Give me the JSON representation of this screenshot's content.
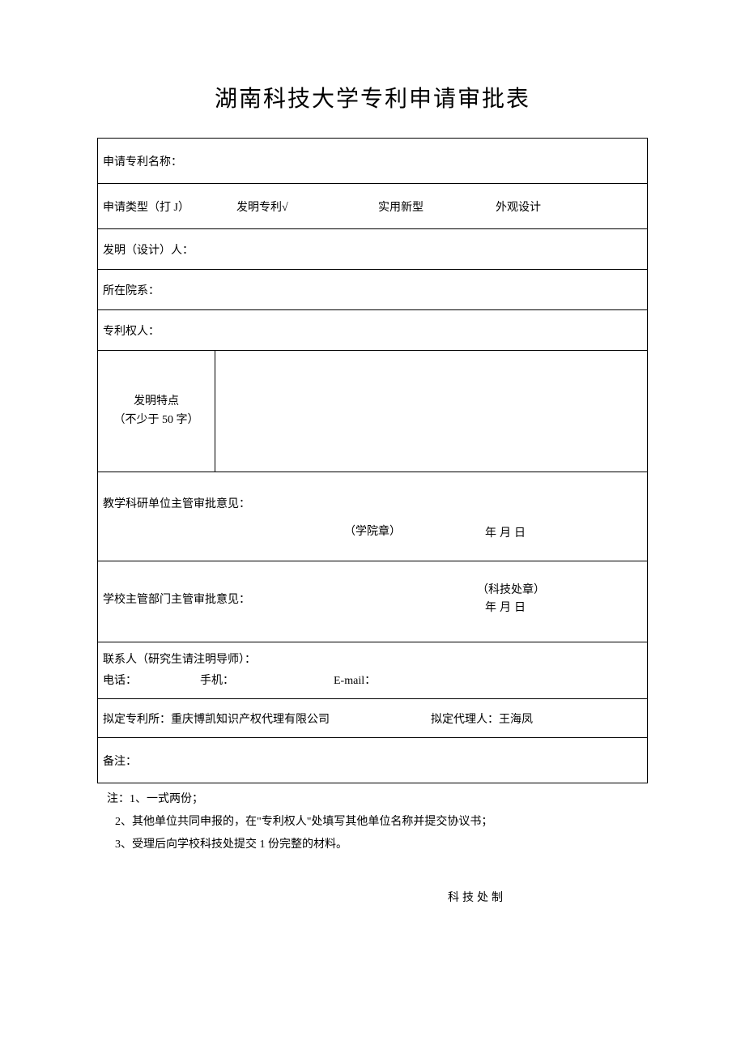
{
  "title": "湖南科技大学专利申请审批表",
  "rows": {
    "name_label": "申请专利名称：",
    "type_label": "申请类型（打 J）",
    "type_opt1": "发明专利√",
    "type_opt2": "实用新型",
    "type_opt3": "外观设计",
    "inventor_label": "发明（设计）人：",
    "dept_label": "所在院系：",
    "owner_label": "专利权人：",
    "feature_label1": "发明特点",
    "feature_label2": "（不少于 50 字）",
    "approval1_label": "教学科研单位主管审批意见：",
    "approval1_seal": "（学院章）",
    "approval1_date": "年月日",
    "approval2_label": "学校主管部门主管审批意见：",
    "approval2_seal": "（科技处章）",
    "approval2_date": "年月日",
    "contact_label": "联系人（研究生请注明导师）：",
    "contact_tel": "电话：",
    "contact_mobile": "手机：",
    "contact_email": "E-mail：",
    "agent_office": "拟定专利所：重庆博凯知识产权代理有限公司",
    "agent_person": "拟定代理人：王海凤",
    "remark_label": "备注："
  },
  "notes": {
    "n1": "注：1、一式两份；",
    "n2": "2、其他单位共同申报的，在\"专利权人\"处填写其他单位名称并提交协议书；",
    "n3": "3、受理后向学校科技处提交 1 份完整的材料。"
  },
  "footer": "科技处制"
}
